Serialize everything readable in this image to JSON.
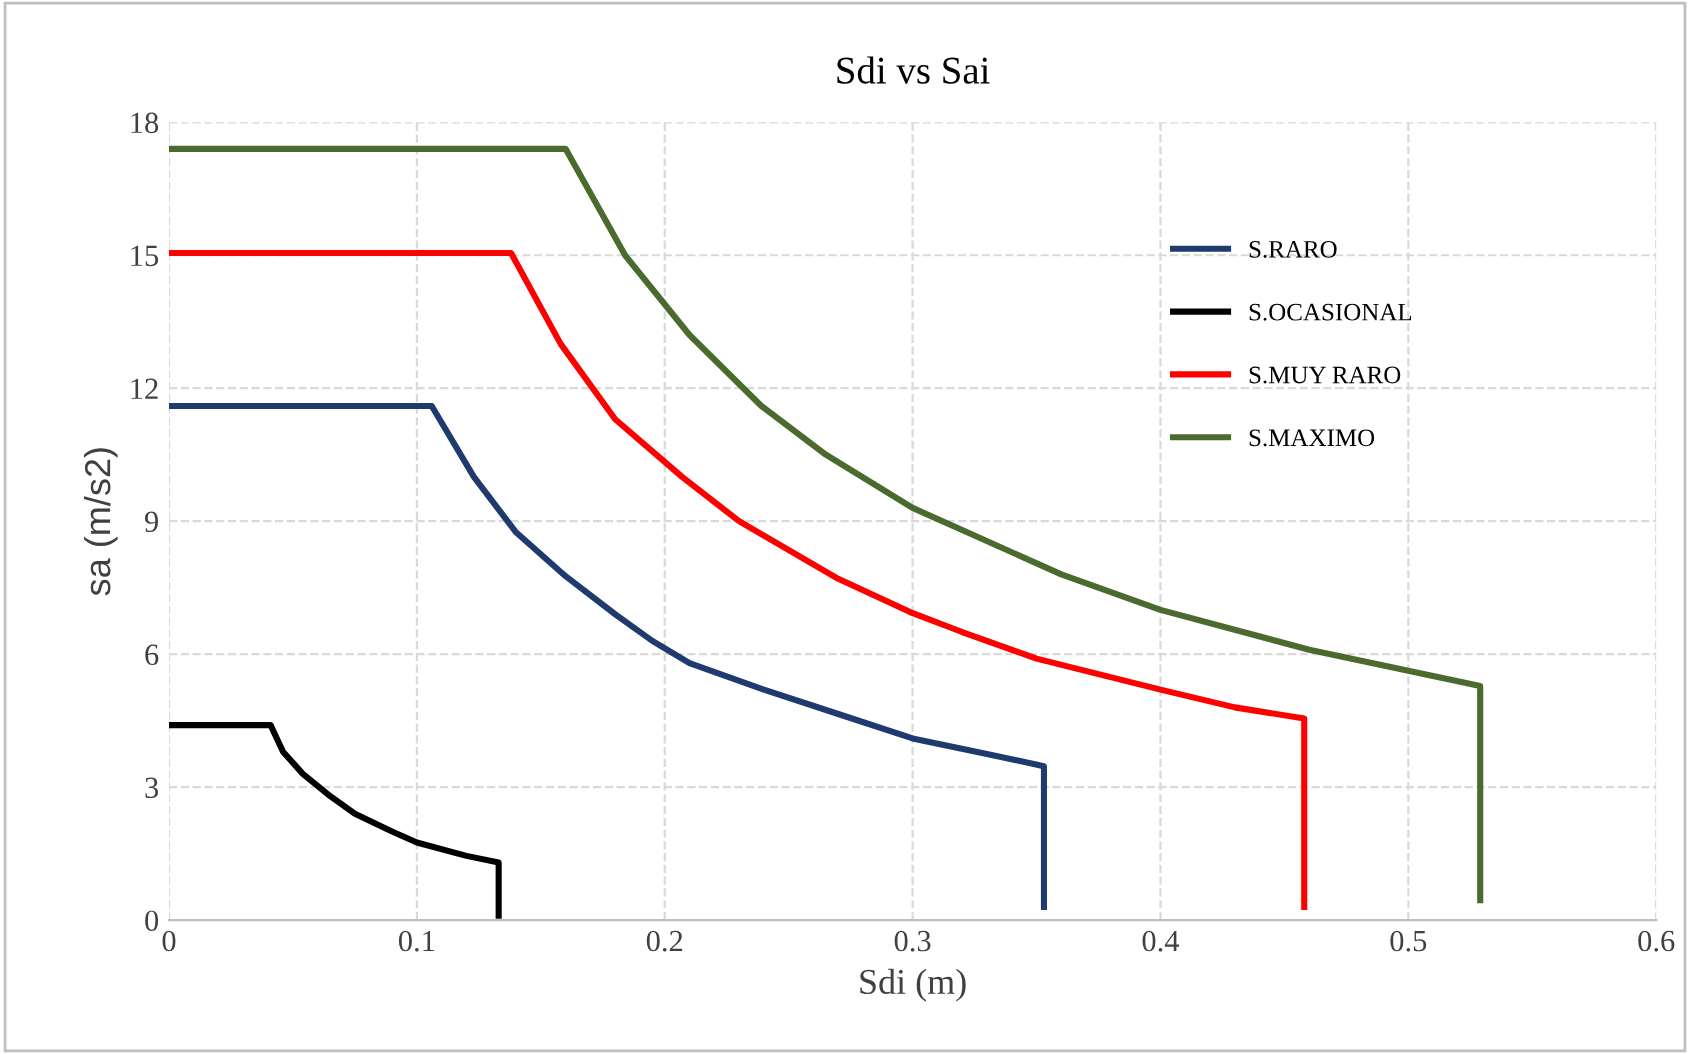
{
  "chart_data": {
    "type": "line",
    "title": "Sdi vs Sai",
    "xlabel": "Sdi (m)",
    "ylabel": "sa (m/s2)",
    "xlim": [
      0,
      0.6
    ],
    "xticks": [
      0,
      0.1,
      0.2,
      0.3,
      0.4,
      0.5,
      0.6
    ],
    "ylim": [
      0,
      18
    ],
    "yticks": [
      0,
      3,
      6,
      9,
      12,
      15,
      18
    ],
    "grid": true,
    "legend": "right",
    "marker": "none",
    "line_style": "solid",
    "series": [
      {
        "name": "S.RARO",
        "color": "#1f3a6e",
        "x": [
          0,
          0.106,
          0.123,
          0.14,
          0.16,
          0.18,
          0.195,
          0.21,
          0.24,
          0.27,
          0.3,
          0.33,
          0.353,
          0.353
        ],
        "values": [
          11.6,
          11.6,
          10.0,
          8.75,
          7.76,
          6.9,
          6.3,
          5.8,
          5.2,
          4.65,
          4.1,
          3.75,
          3.47,
          0.3
        ]
      },
      {
        "name": "S.OCASIONAL",
        "color": "#000000",
        "x": [
          0,
          0.041,
          0.046,
          0.054,
          0.065,
          0.075,
          0.09,
          0.1,
          0.12,
          0.133,
          0.133
        ],
        "values": [
          4.4,
          4.4,
          3.8,
          3.3,
          2.8,
          2.4,
          2.0,
          1.75,
          1.45,
          1.3,
          0.1
        ]
      },
      {
        "name": "S.MUY RARO",
        "color": "#ff0000",
        "x": [
          0,
          0.138,
          0.158,
          0.18,
          0.207,
          0.23,
          0.27,
          0.299,
          0.32,
          0.35,
          0.4,
          0.43,
          0.458,
          0.458
        ],
        "values": [
          15.05,
          15.05,
          13.0,
          11.3,
          10.0,
          9.0,
          7.7,
          6.95,
          6.5,
          5.9,
          5.2,
          4.8,
          4.55,
          0.3
        ]
      },
      {
        "name": "S.MAXIMO",
        "color": "#4a6a2e",
        "x": [
          0,
          0.16,
          0.184,
          0.21,
          0.239,
          0.265,
          0.3,
          0.32,
          0.36,
          0.4,
          0.46,
          0.529,
          0.529
        ],
        "values": [
          17.4,
          17.4,
          15.0,
          13.2,
          11.6,
          10.5,
          9.3,
          8.8,
          7.8,
          7.0,
          6.1,
          5.28,
          0.45
        ]
      }
    ]
  }
}
